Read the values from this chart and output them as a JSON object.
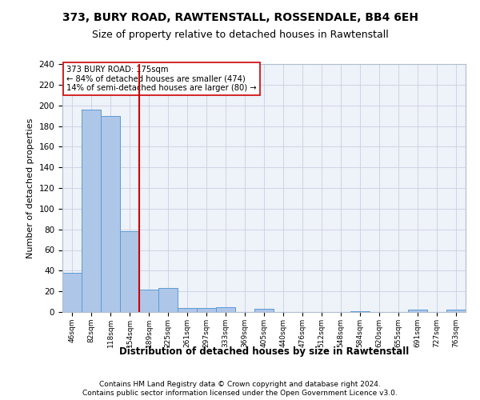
{
  "title1": "373, BURY ROAD, RAWTENSTALL, ROSSENDALE, BB4 6EH",
  "title2": "Size of property relative to detached houses in Rawtenstall",
  "xlabel": "Distribution of detached houses by size in Rawtenstall",
  "ylabel": "Number of detached properties",
  "bin_labels": [
    "46sqm",
    "82sqm",
    "118sqm",
    "154sqm",
    "189sqm",
    "225sqm",
    "261sqm",
    "297sqm",
    "333sqm",
    "369sqm",
    "405sqm",
    "440sqm",
    "476sqm",
    "512sqm",
    "548sqm",
    "584sqm",
    "620sqm",
    "655sqm",
    "691sqm",
    "727sqm",
    "763sqm"
  ],
  "bar_heights": [
    38,
    196,
    190,
    78,
    22,
    23,
    4,
    4,
    5,
    0,
    3,
    0,
    0,
    0,
    0,
    1,
    0,
    0,
    2,
    0,
    2
  ],
  "bar_color": "#aec6e8",
  "bar_edge_color": "#5b9bd5",
  "vline_pos": 3.5,
  "vline_color": "#cc0000",
  "annotation_text": "373 BURY ROAD: 175sqm\n← 84% of detached houses are smaller (474)\n14% of semi-detached houses are larger (80) →",
  "annotation_box_color": "#ffffff",
  "annotation_box_edge": "#cc0000",
  "ylim": [
    0,
    240
  ],
  "yticks": [
    0,
    20,
    40,
    60,
    80,
    100,
    120,
    140,
    160,
    180,
    200,
    220,
    240
  ],
  "footer1": "Contains HM Land Registry data © Crown copyright and database right 2024.",
  "footer2": "Contains public sector information licensed under the Open Government Licence v3.0.",
  "bg_color": "#eef2f9",
  "title_fontsize": 10,
  "subtitle_fontsize": 9
}
